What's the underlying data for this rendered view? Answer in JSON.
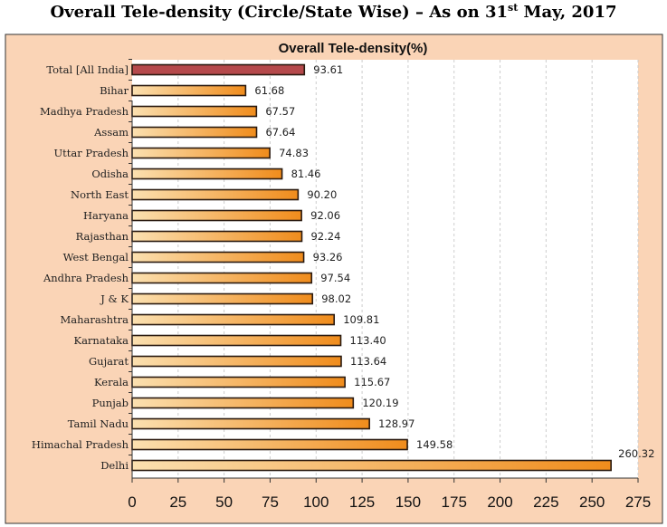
{
  "page": {
    "title_main": "Overall Tele-density (Circle/State Wise) – As on 31",
    "title_sup": "st",
    "title_end": " May, 2017"
  },
  "chart_data": {
    "type": "bar",
    "orientation": "horizontal",
    "title": "Overall Tele-density(%)",
    "xlabel": "",
    "ylabel": "",
    "xlim": [
      0,
      275
    ],
    "xticks": [
      "0",
      "25",
      "50",
      "75",
      "100",
      "125",
      "150",
      "175",
      "200",
      "225",
      "250",
      "275"
    ],
    "grid": true,
    "categories": [
      "Total [All India]",
      "Bihar",
      "Madhya Pradesh",
      "Assam",
      "Uttar Pradesh",
      "Odisha",
      "North East",
      "Haryana",
      "Rajasthan",
      "West Bengal",
      "Andhra Pradesh",
      "J & K",
      "Maharashtra",
      "Karnataka",
      "Gujarat",
      "Kerala",
      "Punjab",
      "Tamil Nadu",
      "Himachal Pradesh",
      "Delhi"
    ],
    "values": [
      93.61,
      61.68,
      67.57,
      67.64,
      74.83,
      81.46,
      90.2,
      92.06,
      92.24,
      93.26,
      97.54,
      98.02,
      109.81,
      113.4,
      113.64,
      115.67,
      120.19,
      128.97,
      149.58,
      260.32
    ],
    "labels": [
      "93.61",
      "61.68",
      "67.57",
      "67.64",
      "74.83",
      "81.46",
      "90.20",
      "92.06",
      "92.24",
      "93.26",
      "97.54",
      "98.02",
      "109.81",
      "113.40",
      "113.64",
      "115.67",
      "120.19",
      "128.97",
      "149.58",
      "260.32"
    ],
    "colors": {
      "total": "#b5494b",
      "bar_start": "#fbe0b0",
      "bar_end": "#f08c1c",
      "panel": "#fad4b6",
      "border": "#2a1a10"
    }
  }
}
